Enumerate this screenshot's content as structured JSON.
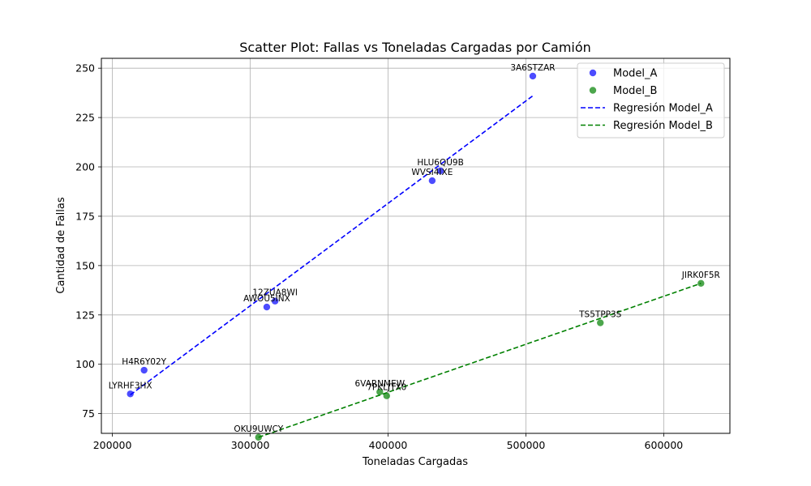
{
  "chart_data": {
    "type": "scatter",
    "title": "Scatter Plot: Fallas vs Toneladas Cargadas por Camión",
    "xlabel": "Toneladas Cargadas",
    "ylabel": "Cantidad de Fallas",
    "xlim": [
      192000,
      648000
    ],
    "ylim": [
      65,
      255
    ],
    "xticks": [
      200000,
      300000,
      400000,
      500000,
      600000
    ],
    "xtick_labels": [
      "200000",
      "300000",
      "400000",
      "500000",
      "600000"
    ],
    "yticks": [
      75,
      100,
      125,
      150,
      175,
      200,
      225,
      250
    ],
    "ytick_labels": [
      "75",
      "100",
      "125",
      "150",
      "175",
      "200",
      "225",
      "250"
    ],
    "grid": true,
    "legend_position": "top-right",
    "series": [
      {
        "name": "Model_A",
        "color": "#0000ff",
        "points": [
          {
            "label": "3A6STZAR",
            "x": 505000,
            "y": 246
          },
          {
            "label": "HLU6QU9B",
            "x": 438000,
            "y": 198
          },
          {
            "label": "WVSI4IXE",
            "x": 432000,
            "y": 193
          },
          {
            "label": "12ZUA8WI",
            "x": 318000,
            "y": 132
          },
          {
            "label": "AWOU5INX",
            "x": 312000,
            "y": 129
          },
          {
            "label": "H4R6Y02Y",
            "x": 223000,
            "y": 97
          },
          {
            "label": "LYRHF3HX",
            "x": 213000,
            "y": 85
          }
        ]
      },
      {
        "name": "Model_B",
        "color": "#008000",
        "points": [
          {
            "label": "JIRK0F5R",
            "x": 627000,
            "y": 141
          },
          {
            "label": "TS5TPP3S",
            "x": 554000,
            "y": 121
          },
          {
            "label": "6VARNMEW",
            "x": 394000,
            "y": 86
          },
          {
            "label": "7PKLJTX0",
            "x": 399000,
            "y": 84
          },
          {
            "label": "OKU9UWCY",
            "x": 306000,
            "y": 63
          }
        ]
      }
    ],
    "regressions": [
      {
        "name": "Regresión Model_A",
        "color": "#0000ff",
        "x": [
          213000,
          505000
        ],
        "y": [
          84.5,
          236
        ]
      },
      {
        "name": "Regresión Model_B",
        "color": "#008000",
        "x": [
          306000,
          627000
        ],
        "y": [
          63,
          141
        ]
      }
    ]
  }
}
